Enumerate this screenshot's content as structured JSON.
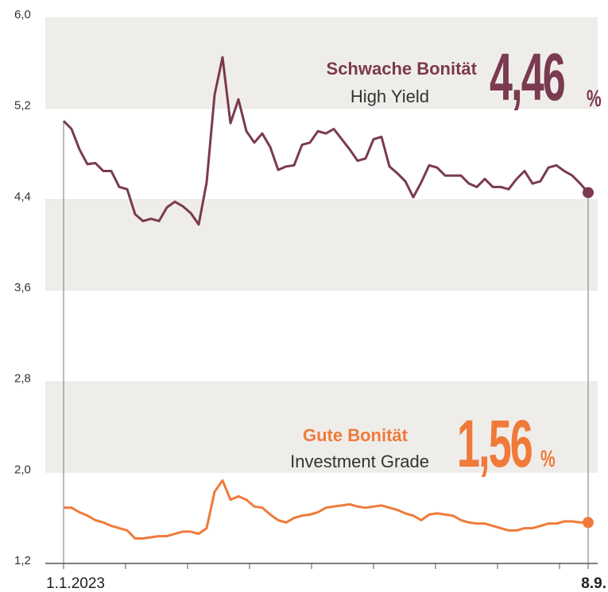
{
  "chart_data": {
    "type": "line",
    "categories": [
      "1.1.2023",
      null,
      null,
      null,
      null,
      null,
      null,
      null,
      null,
      null,
      null,
      null,
      null,
      null,
      null,
      null,
      null,
      null,
      null,
      null,
      null,
      null,
      null,
      null,
      null,
      null,
      null,
      null,
      null,
      null,
      null,
      null,
      null,
      null,
      null,
      null,
      null,
      null,
      null,
      null,
      null,
      null,
      null,
      null,
      null,
      null,
      null,
      null,
      null,
      null,
      null,
      null,
      null,
      null,
      null,
      null,
      null,
      null,
      null,
      null,
      null,
      null,
      null,
      null,
      null,
      null,
      "8.9."
    ],
    "series": [
      {
        "name": "Schwache Bonität",
        "subtitle": "High Yield",
        "end_label": "4,46",
        "unit": "%",
        "color": "#7a3a4f",
        "values": [
          5.09,
          5.02,
          4.84,
          4.71,
          4.72,
          4.65,
          4.65,
          4.51,
          4.49,
          4.27,
          4.21,
          4.23,
          4.21,
          4.33,
          4.38,
          4.34,
          4.28,
          4.18,
          4.55,
          5.32,
          5.65,
          5.07,
          5.28,
          5.0,
          4.9,
          4.98,
          4.86,
          4.66,
          4.69,
          4.7,
          4.88,
          4.9,
          5.0,
          4.98,
          5.02,
          4.93,
          4.84,
          4.74,
          4.76,
          4.93,
          4.95,
          4.69,
          4.63,
          4.56,
          4.42,
          4.55,
          4.7,
          4.68,
          4.61,
          4.61,
          4.61,
          4.54,
          4.51,
          4.58,
          4.51,
          4.51,
          4.49,
          4.58,
          4.65,
          4.54,
          4.56,
          4.68,
          4.7,
          4.65,
          4.61,
          4.54,
          4.46
        ]
      },
      {
        "name": "Gute Bonität",
        "subtitle": "Investment Grade",
        "end_label": "1,56",
        "unit": "%",
        "color": "#f07a3a",
        "values": [
          1.69,
          1.69,
          1.65,
          1.62,
          1.58,
          1.56,
          1.53,
          1.51,
          1.49,
          1.42,
          1.42,
          1.43,
          1.44,
          1.44,
          1.46,
          1.48,
          1.48,
          1.46,
          1.51,
          1.83,
          1.93,
          1.76,
          1.79,
          1.76,
          1.7,
          1.69,
          1.63,
          1.58,
          1.56,
          1.6,
          1.62,
          1.63,
          1.65,
          1.69,
          1.7,
          1.71,
          1.72,
          1.7,
          1.69,
          1.7,
          1.71,
          1.69,
          1.67,
          1.64,
          1.62,
          1.58,
          1.63,
          1.64,
          1.63,
          1.62,
          1.58,
          1.56,
          1.55,
          1.55,
          1.53,
          1.51,
          1.49,
          1.49,
          1.51,
          1.51,
          1.53,
          1.55,
          1.55,
          1.57,
          1.57,
          1.56,
          1.56
        ]
      }
    ],
    "ylim": [
      1.2,
      6.0
    ],
    "yticks": [
      {
        "value": 1.2,
        "label": "1,2"
      },
      {
        "value": 2.0,
        "label": "2,0"
      },
      {
        "value": 2.8,
        "label": "2,8"
      },
      {
        "value": 3.6,
        "label": "3,6"
      },
      {
        "value": 4.4,
        "label": "4,4"
      },
      {
        "value": 5.2,
        "label": "5,2"
      },
      {
        "value": 6.0,
        "label": "6,0"
      }
    ],
    "bands": true
  }
}
